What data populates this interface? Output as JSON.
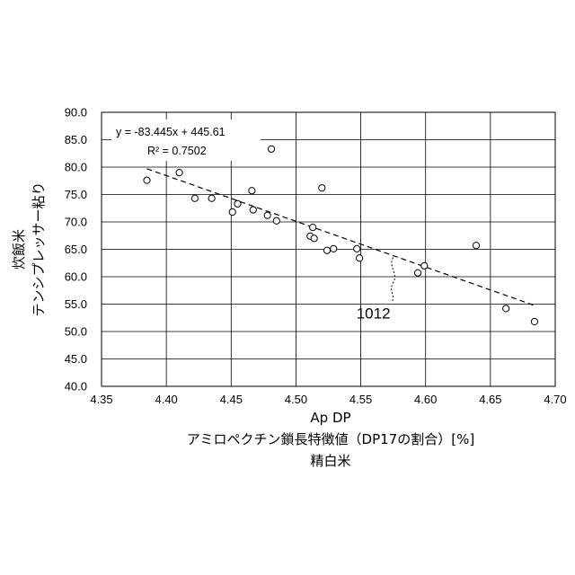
{
  "chart_data": {
    "type": "scatter",
    "xlabel_lines": [
      "Ap DP",
      "アミロペクチン鎖長特徴値（DP17の割合）[%]",
      "精白米"
    ],
    "ylabel_lines": [
      "炊飯米",
      "テンシプレッサー粘り"
    ],
    "xlim": [
      4.35,
      4.7
    ],
    "ylim": [
      40.0,
      90.0
    ],
    "x_ticks": [
      "4.35",
      "4.40",
      "4.45",
      "4.50",
      "4.55",
      "4.60",
      "4.65",
      "4.70"
    ],
    "y_ticks": [
      "40.0",
      "45.0",
      "50.0",
      "55.0",
      "60.0",
      "65.0",
      "70.0",
      "75.0",
      "80.0",
      "85.0",
      "90.0"
    ],
    "grid": true,
    "points": [
      {
        "x": 4.385,
        "y": 77.6
      },
      {
        "x": 4.41,
        "y": 79.0
      },
      {
        "x": 4.422,
        "y": 74.3
      },
      {
        "x": 4.435,
        "y": 74.3
      },
      {
        "x": 4.451,
        "y": 71.8
      },
      {
        "x": 4.455,
        "y": 73.3
      },
      {
        "x": 4.466,
        "y": 75.7
      },
      {
        "x": 4.467,
        "y": 72.2
      },
      {
        "x": 4.478,
        "y": 71.2
      },
      {
        "x": 4.481,
        "y": 83.3
      },
      {
        "x": 4.485,
        "y": 70.2
      },
      {
        "x": 4.511,
        "y": 67.4
      },
      {
        "x": 4.513,
        "y": 69.0
      },
      {
        "x": 4.514,
        "y": 67.0
      },
      {
        "x": 4.52,
        "y": 76.2
      },
      {
        "x": 4.524,
        "y": 64.8
      },
      {
        "x": 4.529,
        "y": 65.1
      },
      {
        "x": 4.547,
        "y": 65.1
      },
      {
        "x": 4.549,
        "y": 63.4
      },
      {
        "x": 4.594,
        "y": 60.7
      },
      {
        "x": 4.599,
        "y": 62.0
      },
      {
        "x": 4.639,
        "y": 65.7
      },
      {
        "x": 4.662,
        "y": 54.2
      },
      {
        "x": 4.684,
        "y": 51.8
      }
    ],
    "trendline": {
      "slope": -83.445,
      "intercept": 445.61,
      "x_range": [
        4.385,
        4.684
      ],
      "style": "dashed"
    },
    "equation_lines": [
      "y = -83.445x + 445.61",
      "R² = 0.7502"
    ],
    "annotation": {
      "label": "1012",
      "x": 4.575,
      "y": 63.5
    }
  }
}
